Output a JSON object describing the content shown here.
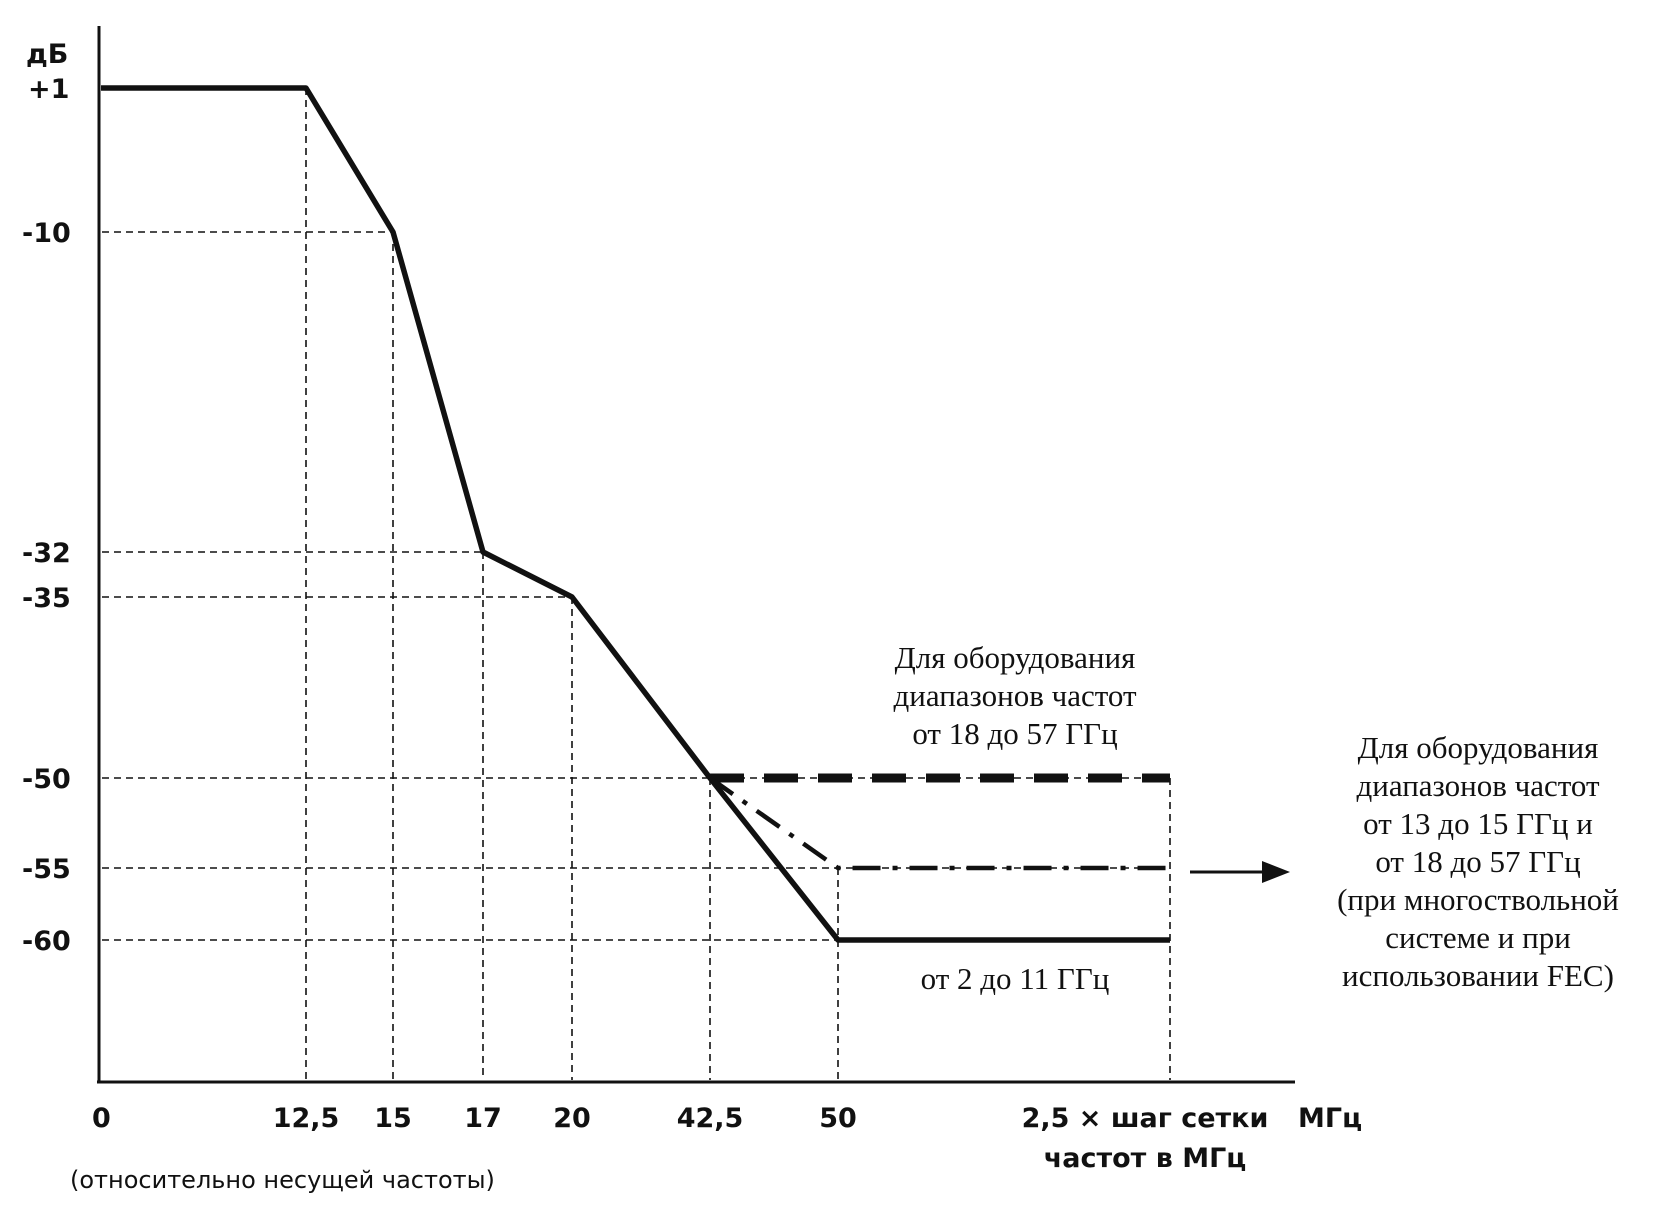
{
  "chart_data": {
    "type": "line",
    "ylabel": "дБ",
    "xlabel": "МГц",
    "x_note": "(относительно несущей частоты)",
    "x_ticks": [
      {
        "value": 0,
        "label": "0"
      },
      {
        "value": 12.5,
        "label": "12,5"
      },
      {
        "value": 15,
        "label": "15"
      },
      {
        "value": 17,
        "label": "17"
      },
      {
        "value": 20,
        "label": "20"
      },
      {
        "value": 42.5,
        "label": "42,5"
      },
      {
        "value": 50,
        "label": "50"
      },
      {
        "value": 62.5,
        "label_lines": [
          "2,5 × шаг сетки",
          "частот в МГц"
        ]
      }
    ],
    "y_ticks": [
      {
        "value": 1,
        "label": "+1"
      },
      {
        "value": -10,
        "label": "-10"
      },
      {
        "value": -32,
        "label": "-32"
      },
      {
        "value": -35,
        "label": "-35"
      },
      {
        "value": -50,
        "label": "-50"
      },
      {
        "value": -55,
        "label": "-55"
      },
      {
        "value": -60,
        "label": "-60"
      }
    ],
    "series": [
      {
        "style": "solid",
        "x": [
          0,
          12.5,
          15,
          17,
          20,
          42.5,
          50,
          62.5
        ],
        "y": [
          1,
          1,
          -10,
          -32,
          -35,
          -50,
          -60,
          -60
        ]
      },
      {
        "style": "dashed",
        "x": [
          42.5,
          62.5
        ],
        "y": [
          -50,
          -50
        ]
      },
      {
        "style": "dash-dot",
        "x": [
          42.5,
          50,
          62.5
        ],
        "y": [
          -50,
          -55,
          -55
        ]
      }
    ],
    "annotations": [
      {
        "id": "upper",
        "lines": [
          "Для оборудования",
          "диапазонов частот",
          "от 18 до 57 ГГц"
        ]
      },
      {
        "id": "lower",
        "lines": [
          "от 2 до 11 ГГц"
        ]
      },
      {
        "id": "right",
        "lines": [
          "Для оборудования",
          "диапазонов частот",
          "от 13 до 15 ГГц и",
          "от 18 до 57 ГГц",
          "(при многоствольной",
          "системе и при",
          "использовании FEC)"
        ]
      }
    ],
    "grid": false
  }
}
